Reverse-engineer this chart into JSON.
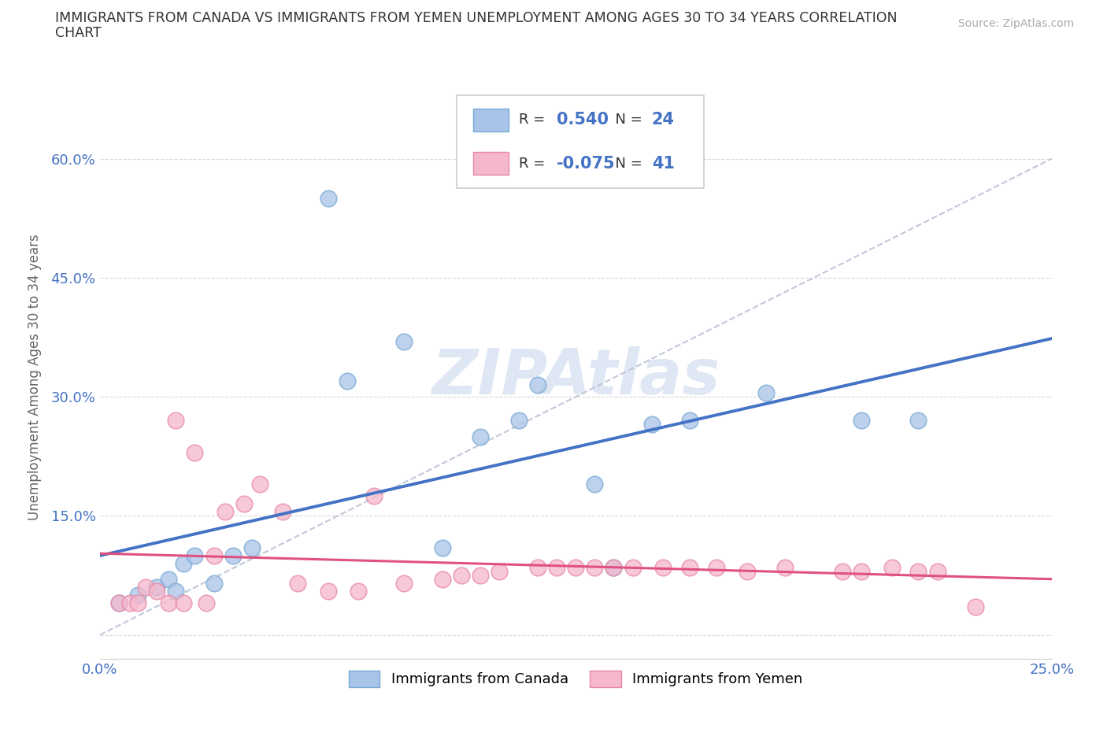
{
  "title_line1": "IMMIGRANTS FROM CANADA VS IMMIGRANTS FROM YEMEN UNEMPLOYMENT AMONG AGES 30 TO 34 YEARS CORRELATION",
  "title_line2": "CHART",
  "source": "Source: ZipAtlas.com",
  "ylabel": "Unemployment Among Ages 30 to 34 years",
  "xlim": [
    0.0,
    0.25
  ],
  "ylim": [
    -0.03,
    0.68
  ],
  "xticks": [
    0.0,
    0.05,
    0.1,
    0.15,
    0.2,
    0.25
  ],
  "xticklabels": [
    "0.0%",
    "",
    "",
    "",
    "",
    "25.0%"
  ],
  "yticks": [
    0.0,
    0.15,
    0.3,
    0.45,
    0.6
  ],
  "yticklabels": [
    "",
    "15.0%",
    "30.0%",
    "45.0%",
    "60.0%"
  ],
  "canada_R": "0.540",
  "canada_N": "24",
  "yemen_R": "-0.075",
  "yemen_N": "41",
  "canada_marker_color": "#a8c4e8",
  "canada_edge_color": "#7aaad4",
  "yemen_marker_color": "#f5b8cb",
  "yemen_edge_color": "#e888a8",
  "canada_line_color": "#4472c4",
  "yemen_line_color": "#e05080",
  "ref_line_color": "#c0c8d8",
  "number_color": "#4472c4",
  "watermark_color": "#c8d8ec",
  "background_color": "#ffffff",
  "grid_color": "#d8d8d8",
  "canada_scatter_x": [
    0.005,
    0.01,
    0.015,
    0.018,
    0.02,
    0.022,
    0.025,
    0.03,
    0.035,
    0.04,
    0.06,
    0.065,
    0.08,
    0.09,
    0.1,
    0.11,
    0.115,
    0.13,
    0.135,
    0.145,
    0.155,
    0.175,
    0.2,
    0.215
  ],
  "canada_scatter_y": [
    0.04,
    0.05,
    0.06,
    0.07,
    0.055,
    0.09,
    0.1,
    0.065,
    0.1,
    0.11,
    0.55,
    0.32,
    0.37,
    0.11,
    0.25,
    0.27,
    0.315,
    0.19,
    0.085,
    0.265,
    0.27,
    0.305,
    0.27,
    0.27
  ],
  "yemen_scatter_x": [
    0.005,
    0.008,
    0.01,
    0.012,
    0.015,
    0.018,
    0.02,
    0.022,
    0.025,
    0.028,
    0.03,
    0.033,
    0.038,
    0.042,
    0.048,
    0.052,
    0.06,
    0.068,
    0.072,
    0.08,
    0.09,
    0.095,
    0.1,
    0.105,
    0.115,
    0.12,
    0.125,
    0.13,
    0.135,
    0.14,
    0.148,
    0.155,
    0.162,
    0.17,
    0.18,
    0.195,
    0.2,
    0.208,
    0.215,
    0.22,
    0.23
  ],
  "yemen_scatter_y": [
    0.04,
    0.04,
    0.04,
    0.06,
    0.055,
    0.04,
    0.27,
    0.04,
    0.23,
    0.04,
    0.1,
    0.155,
    0.165,
    0.19,
    0.155,
    0.065,
    0.055,
    0.055,
    0.175,
    0.065,
    0.07,
    0.075,
    0.075,
    0.08,
    0.085,
    0.085,
    0.085,
    0.085,
    0.085,
    0.085,
    0.085,
    0.085,
    0.085,
    0.08,
    0.085,
    0.08,
    0.08,
    0.085,
    0.08,
    0.08,
    0.035
  ],
  "ref_line_x": [
    0.0,
    0.25
  ],
  "ref_line_y": [
    0.0,
    0.6
  ]
}
